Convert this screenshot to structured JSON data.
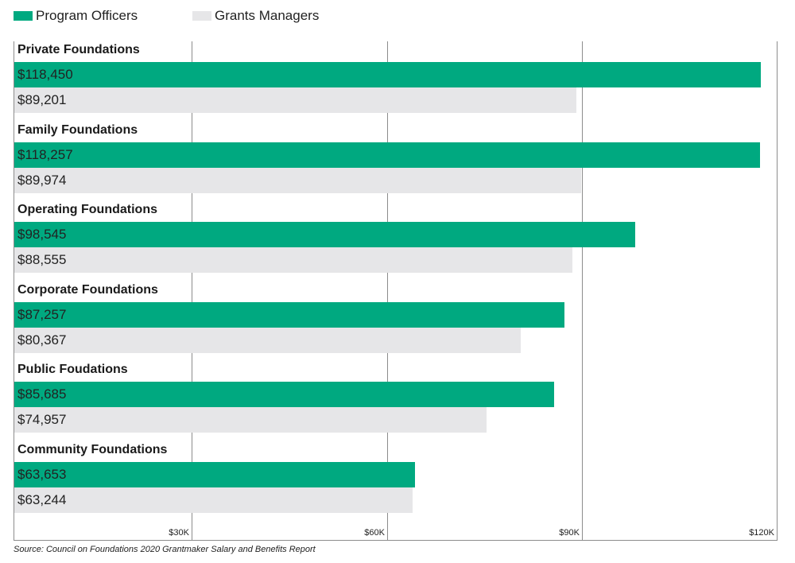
{
  "chart_data": {
    "type": "bar",
    "orientation": "horizontal",
    "title": "",
    "categories": [
      "Private Foundations",
      "Family Foundations",
      "Operating Foundations",
      "Corporate Foundations",
      "Public Foudations",
      "Community Foundations"
    ],
    "series": [
      {
        "name": "Program Officers",
        "color": "#00a980",
        "values": [
          118450,
          118257,
          98545,
          87257,
          85685,
          63653
        ],
        "labels": [
          "$118,450",
          "$118,257",
          "$98,545",
          "$87,257",
          "$85,685",
          "$63,653"
        ]
      },
      {
        "name": "Grants Managers",
        "color": "#e6e6e8",
        "values": [
          89201,
          89974,
          88555,
          80367,
          74957,
          63244
        ],
        "labels": [
          "$89,201",
          "$89,974",
          "$88,555",
          "$80,367",
          "$74,957",
          "$63,244"
        ]
      }
    ],
    "xlim": [
      0,
      120000
    ],
    "xticks": [
      30000,
      60000,
      90000,
      120000
    ],
    "xtick_labels": [
      "$30K",
      "$60K",
      "$90K",
      "$120K"
    ],
    "xlabel": "",
    "ylabel": "",
    "grid": true,
    "legend_position": "top-left",
    "source": "Source: Council on Foundations 2020 Grantmaker Salary and Benefits Report"
  }
}
